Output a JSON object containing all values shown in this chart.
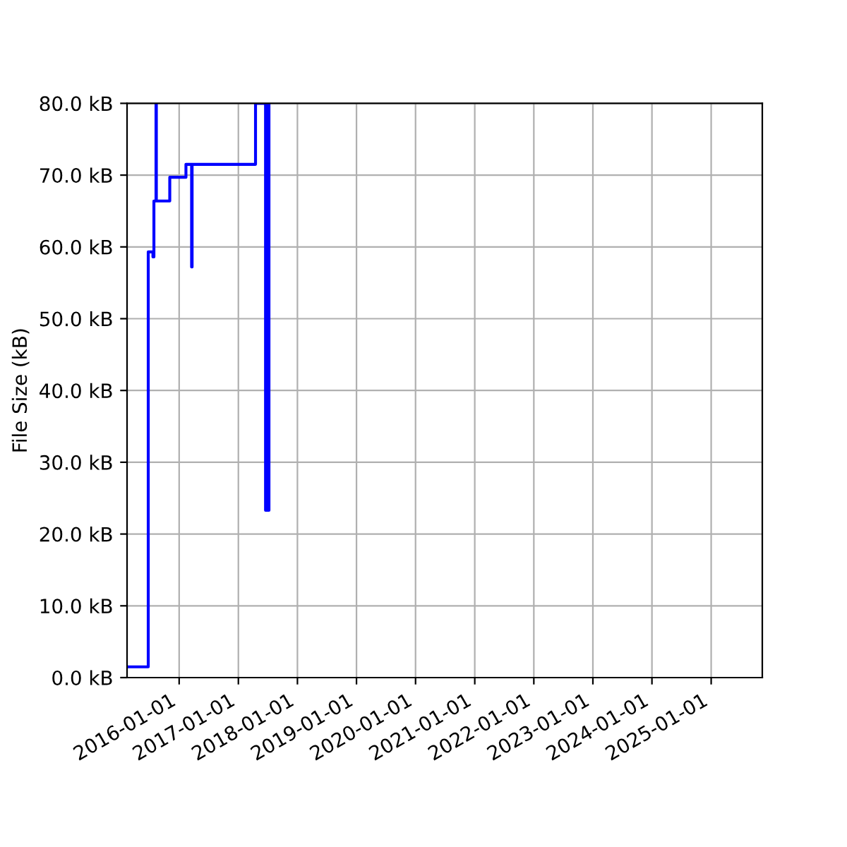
{
  "chart_data": {
    "type": "step",
    "ylabel": "File Size (kB)",
    "x": [
      "2015-02-13",
      "2015-06-24",
      "2015-07-23",
      "2015-07-29",
      "2015-08-11",
      "2015-08-13",
      "2015-11-04",
      "2016-02-12",
      "2016-03-18",
      "2016-03-21",
      "2017-04-17",
      "2017-06-18",
      "2017-06-21",
      "2017-06-24",
      "2017-06-27",
      "2017-06-30",
      "2017-07-03",
      "2017-07-06",
      "2017-07-09"
    ],
    "series": [
      {
        "color": "#0000ff",
        "values": [
          1.5,
          59.3,
          58.6,
          66.4,
          80,
          66.4,
          69.7,
          71.5,
          57.2,
          71.5,
          80,
          23.3,
          80,
          23.3,
          80,
          23.3,
          80,
          23.3,
          80
        ]
      }
    ],
    "xlim": [
      "2015-02-13",
      "2025-11-13"
    ],
    "xticks": [
      "2016-01-01",
      "2017-01-01",
      "2018-01-01",
      "2019-01-01",
      "2020-01-01",
      "2021-01-01",
      "2022-01-01",
      "2023-01-01",
      "2024-01-01",
      "2025-01-01"
    ],
    "ylim": [
      0,
      80
    ],
    "yticks": [
      {
        "value": 0,
        "label": "0.0 kB"
      },
      {
        "value": 10,
        "label": "10.0 kB"
      },
      {
        "value": 20,
        "label": "20.0 kB"
      },
      {
        "value": 30,
        "label": "30.0 kB"
      },
      {
        "value": 40,
        "label": "40.0 kB"
      },
      {
        "value": 50,
        "label": "50.0 kB"
      },
      {
        "value": 60,
        "label": "60.0 kB"
      },
      {
        "value": 70,
        "label": "70.0 kB"
      },
      {
        "value": 80,
        "label": "80.0 kB"
      }
    ],
    "grid": true,
    "line_style": "solid"
  }
}
